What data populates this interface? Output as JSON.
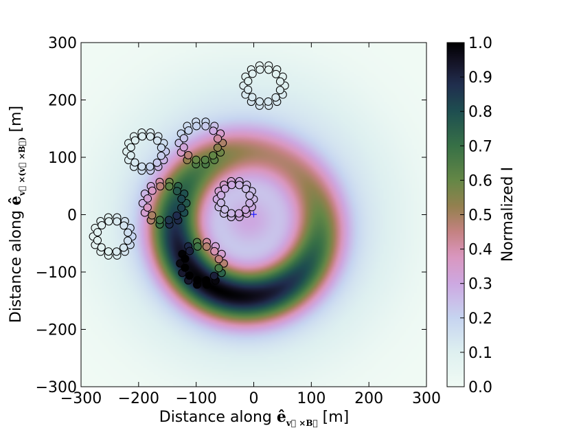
{
  "chart_data": {
    "type": "heatmap",
    "xlabel": {
      "prefix": "Distance along ",
      "symbol": "ê",
      "subscript": "v⃗ ×B⃗",
      "unit": " [m]"
    },
    "ylabel": {
      "prefix": "Distance along ",
      "symbol": "ê",
      "subscript": "v⃗ ×(v⃗ ×B⃗)",
      "unit": " [m]"
    },
    "xlim": [
      -300,
      300
    ],
    "ylim": [
      -300,
      300
    ],
    "xticks": [
      "−300",
      "−200",
      "−100",
      "0",
      "100",
      "200",
      "300"
    ],
    "yticks": [
      "−300",
      "−200",
      "−100",
      "0",
      "100",
      "200",
      "300"
    ],
    "colorbar": {
      "label": "Normalized I",
      "range": [
        0.0,
        1.0
      ],
      "ticks": [
        "0.0",
        "0.1",
        "0.2",
        "0.3",
        "0.4",
        "0.5",
        "0.6",
        "0.7",
        "0.8",
        "0.9",
        "1.0"
      ],
      "colormap": "cubehelix_r"
    },
    "intensity_model": {
      "description": "ring-shaped footprint centered near core",
      "ring_center": [
        -8,
        -10
      ],
      "ring_radius": 125,
      "ring_width": 48,
      "shift_center": [
        -35,
        -65
      ],
      "inner_hole_level": 0.3
    },
    "core_marker": {
      "x": 0,
      "y": 0,
      "symbol": "+",
      "color": "#1a1aff"
    },
    "station_groups": [
      {
        "name": "group-1",
        "cx": 18,
        "cy": 225,
        "r": 36
      },
      {
        "name": "group-2",
        "cx": -92,
        "cy": 125,
        "r": 38
      },
      {
        "name": "group-3",
        "cx": -187,
        "cy": 110,
        "r": 34
      },
      {
        "name": "group-4",
        "cx": -155,
        "cy": 20,
        "r": 38
      },
      {
        "name": "group-5",
        "cx": -32,
        "cy": 27,
        "r": 32
      },
      {
        "name": "group-6",
        "cx": -245,
        "cy": -38,
        "r": 34
      },
      {
        "name": "group-7",
        "cx": -90,
        "cy": -85,
        "r": 38
      }
    ]
  }
}
